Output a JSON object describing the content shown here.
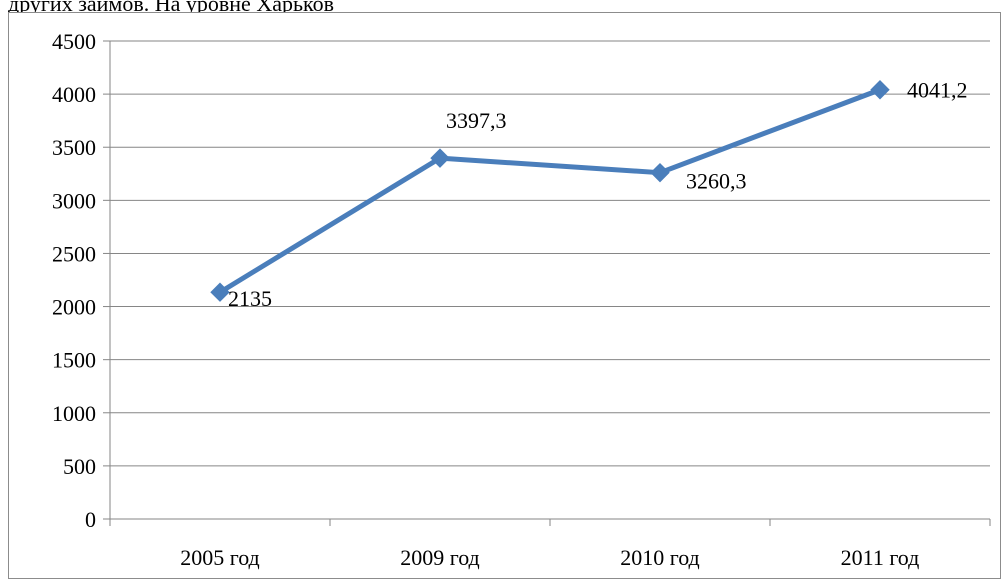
{
  "page_text": {
    "caption": "других займов. На уровне Харьков"
  },
  "chart_data": {
    "type": "line",
    "categories": [
      "2005 год",
      "2009 год",
      "2010 год",
      "2011 год"
    ],
    "series": [
      {
        "values": [
          2135,
          3397.3,
          3260.3,
          4041.2
        ],
        "color": "#4a7ebb"
      }
    ],
    "data_labels": [
      "2135",
      "3397,3",
      "3260,3",
      "4041,2"
    ],
    "ylim": [
      0,
      4500
    ],
    "yticks": [
      0,
      500,
      1000,
      1500,
      2000,
      2500,
      3000,
      3500,
      4000,
      4500
    ],
    "ytick_labels": [
      "0",
      "500",
      "1000",
      "1500",
      "2000",
      "2500",
      "3000",
      "3500",
      "4000",
      "4500"
    ],
    "grid": true,
    "legend": "none",
    "title": "",
    "xlabel": "",
    "ylabel": ""
  }
}
